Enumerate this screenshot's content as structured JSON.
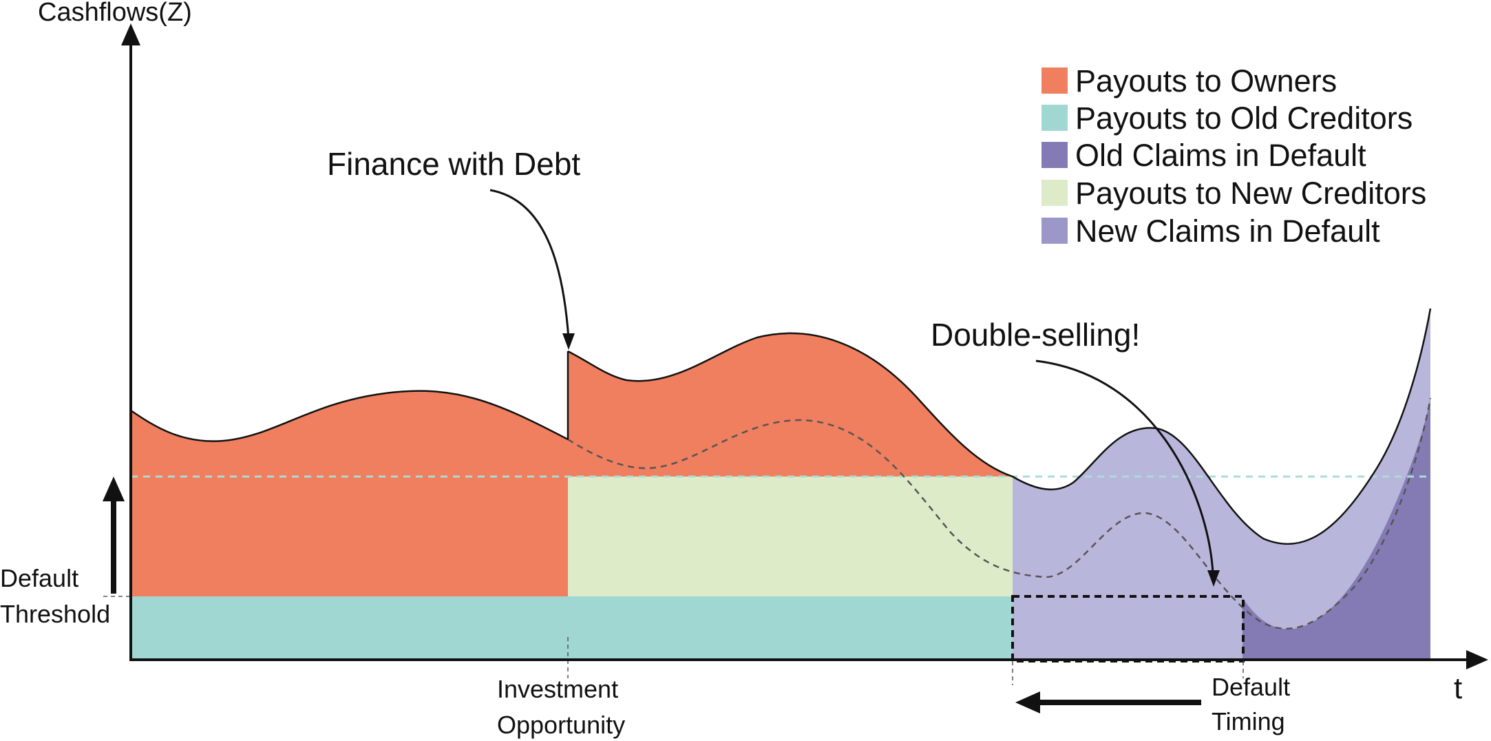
{
  "colors": {
    "owners": "#EF7F5F",
    "old_creditors": "#A0D7D2",
    "old_claims_default": "#847BB5",
    "new_creditors": "#DEEBC8",
    "new_claims_default": "#B9B6DB",
    "new_claims_legend": "#9B98C9",
    "dashed_threshold": "#A9DDD8",
    "dashed_curve": "#555555",
    "ink": "#111111"
  },
  "axes": {
    "y_label": "Cashflows(Z)",
    "x_label": "t"
  },
  "legend": {
    "items": [
      {
        "key": "owners",
        "label": "Payouts to Owners"
      },
      {
        "key": "old_creditors",
        "label": "Payouts to Old Creditors"
      },
      {
        "key": "old_claims_default",
        "label": "Old Claims in Default"
      },
      {
        "key": "new_creditors",
        "label": "Payouts to New Creditors"
      },
      {
        "key": "new_claims_legend",
        "label": "New Claims in Default"
      }
    ]
  },
  "annotations": {
    "finance_with_debt": "Finance with Debt",
    "double_selling": "Double-selling!",
    "default_threshold_line1": "Default",
    "default_threshold_line2": "Threshold",
    "investment_line1": "Investment",
    "investment_line2": "Opportunity",
    "default_timing_line1": "Default",
    "default_timing_line2": "Timing"
  }
}
